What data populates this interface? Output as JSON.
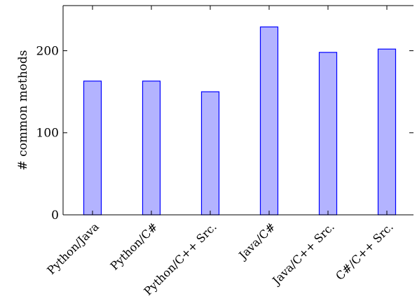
{
  "chart_data": {
    "type": "bar",
    "title": "",
    "xlabel": "",
    "ylabel": "# common methods",
    "categories": [
      "Python/Java",
      "Python/C#",
      "Python/C++ Src.",
      "Java/C#",
      "Java/C++ Src.",
      "C#/C++ Src."
    ],
    "values": [
      163,
      163,
      150,
      229,
      198,
      202
    ],
    "ylim": [
      0,
      255
    ],
    "yticks": [
      0,
      100,
      200
    ],
    "grid": false,
    "colors": {
      "bar_fill": "#b3b3ff",
      "bar_stroke": "#0000ff"
    }
  }
}
